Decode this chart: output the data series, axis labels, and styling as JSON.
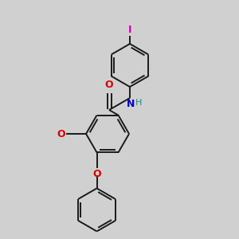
{
  "background_color": "#d0d0d0",
  "bond_color": "#1a1a1a",
  "atom_colors": {
    "O": "#dd0000",
    "N": "#0000cc",
    "I": "#cc00bb",
    "H": "#009999",
    "C": "#1a1a1a"
  },
  "figsize": [
    3.0,
    3.0
  ],
  "dpi": 100,
  "lw": 1.4,
  "ring_r": 27
}
